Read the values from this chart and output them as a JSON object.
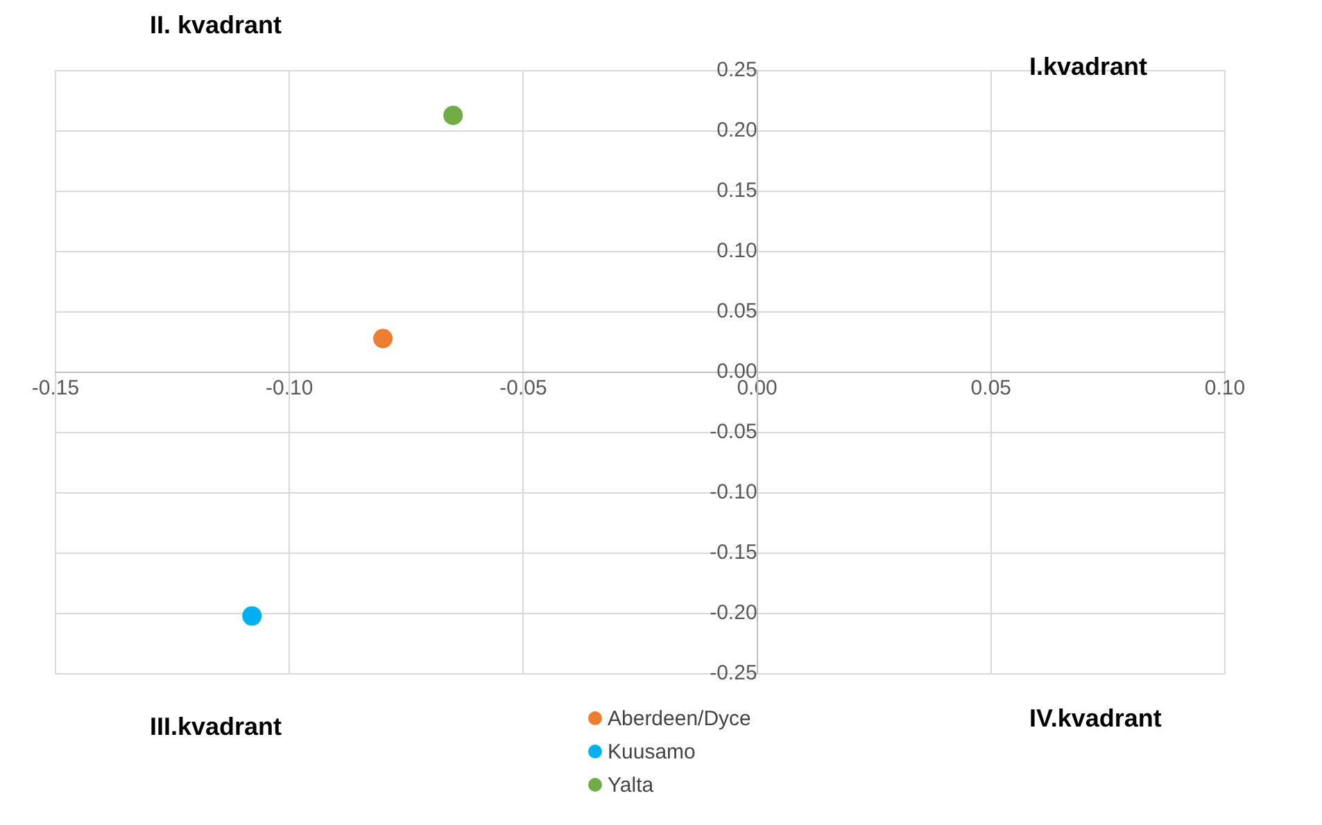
{
  "chart_data": {
    "type": "scatter",
    "marker": "circle",
    "grid": true,
    "legend": "bottom",
    "xlim": [
      -0.15,
      0.1
    ],
    "ylim": [
      -0.25,
      0.25
    ],
    "xticks": [
      {
        "value": -0.15,
        "label": "-0.15"
      },
      {
        "value": -0.1,
        "label": "-0.10"
      },
      {
        "value": -0.05,
        "label": "-0.05"
      },
      {
        "value": 0,
        "label": "0.00"
      },
      {
        "value": 0.05,
        "label": "0.05"
      },
      {
        "value": 0.1,
        "label": "0.10"
      }
    ],
    "yticks": [
      {
        "value": -0.25,
        "label": "-0.25"
      },
      {
        "value": -0.2,
        "label": "-0.20"
      },
      {
        "value": -0.15,
        "label": "-0.15"
      },
      {
        "value": -0.1,
        "label": "-0.10"
      },
      {
        "value": -0.05,
        "label": "-0.05"
      },
      {
        "value": 0,
        "label": "0.00"
      },
      {
        "value": 0.05,
        "label": "0.05"
      },
      {
        "value": 0.1,
        "label": "0.10"
      },
      {
        "value": 0.15,
        "label": "0.15"
      },
      {
        "value": 0.2,
        "label": "0.20"
      },
      {
        "value": 0.25,
        "label": "0.25"
      }
    ],
    "annotations": [
      "II. kvadrant",
      "I.kvadrant",
      "III.kvadrant",
      "IV.kvadrant"
    ],
    "series": [
      {
        "name": "Aberdeen/Dyce",
        "color": "#ed7d31",
        "x": [
          -0.08
        ],
        "values": [
          0.028
        ]
      },
      {
        "name": "Kuusamo",
        "color": "#00b0f0",
        "x": [
          -0.108
        ],
        "values": [
          -0.202
        ]
      },
      {
        "name": "Yalta",
        "color": "#70ad47",
        "x": [
          -0.065
        ],
        "values": [
          0.213
        ]
      }
    ]
  }
}
